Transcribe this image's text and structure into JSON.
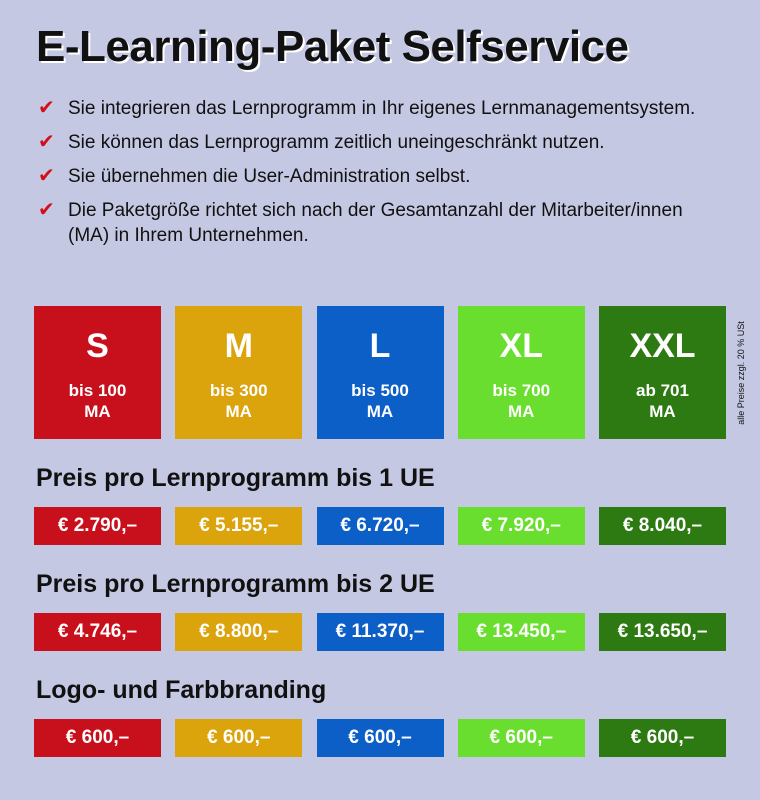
{
  "title": "E-Learning-Paket Selfservice",
  "check_symbol": "✔",
  "bullets": [
    "Sie integrieren das Lernprogramm in Ihr eigenes Lernmanagementsystem.",
    "Sie können das Lernprogramm zeitlich uneingeschränkt nutzen.",
    "Sie übernehmen die User-Administration selbst.",
    "Die Paketgröße richtet sich nach der Gesamtanzahl der Mitarbeiter/innen (MA) in Ihrem Unternehmen."
  ],
  "packages": [
    {
      "size": "S",
      "range": "bis 100",
      "unit": "MA",
      "color": "#c8101c"
    },
    {
      "size": "M",
      "range": "bis 300",
      "unit": "MA",
      "color": "#dba30c"
    },
    {
      "size": "L",
      "range": "bis 500",
      "unit": "MA",
      "color": "#0d5fc8"
    },
    {
      "size": "XL",
      "range": "bis 700",
      "unit": "MA",
      "color": "#6ade2e"
    },
    {
      "size": "XXL",
      "range": "ab 701",
      "unit": "MA",
      "color": "#2e7a12"
    }
  ],
  "tax_note": "alle Preise zzgl. 20 % USt",
  "sections": [
    {
      "title": "Preis pro Lernprogramm bis 1 UE",
      "prices": [
        "€ 2.790,–",
        "€ 5.155,–",
        "€ 6.720,–",
        "€ 7.920,–",
        "€ 8.040,–"
      ]
    },
    {
      "title": "Preis pro Lernprogramm bis 2 UE",
      "prices": [
        "€ 4.746,–",
        "€ 8.800,–",
        "€ 11.370,–",
        "€ 13.450,–",
        "€ 13.650,–"
      ]
    },
    {
      "title": "Logo- und Farbbranding",
      "prices": [
        "€ 600,–",
        "€ 600,–",
        "€ 600,–",
        "€ 600,–",
        "€ 600,–"
      ]
    }
  ]
}
